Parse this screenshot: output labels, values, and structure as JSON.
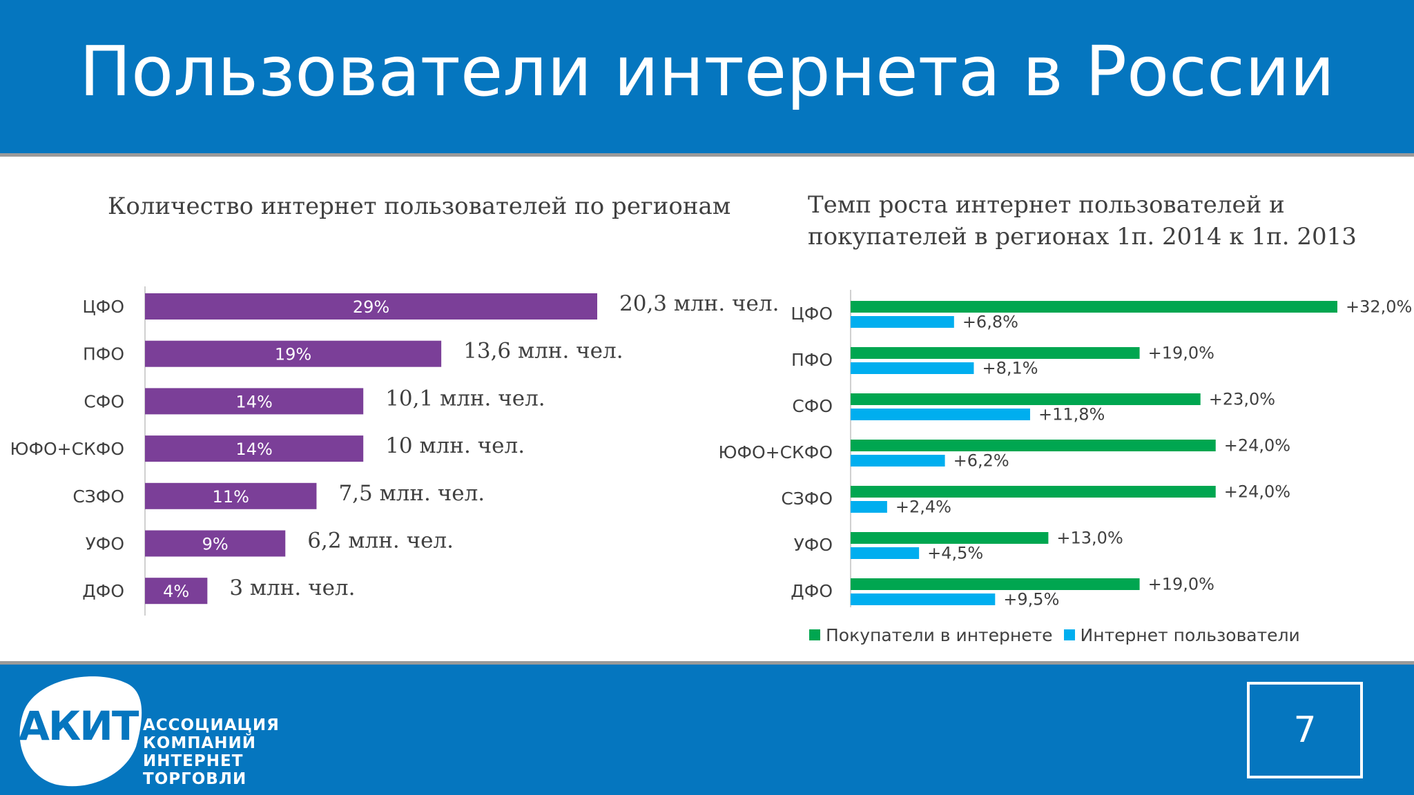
{
  "header": {
    "title": "Пользователи интернета в России"
  },
  "colors": {
    "header_bg": "#0576bf",
    "bar_purple": "#7b3f98",
    "bar_green": "#00a650",
    "bar_blue": "#00aeef"
  },
  "chart_data": [
    {
      "type": "bar",
      "orientation": "horizontal",
      "title": "Количество интернет пользователей по регионам",
      "categories": [
        "ЦФО",
        "ПФО",
        "СФО",
        "ЮФО+СКФО",
        "СЗФО",
        "УФО",
        "ДФО"
      ],
      "values": [
        29,
        19,
        14,
        14,
        11,
        9,
        4
      ],
      "value_labels": [
        "29%",
        "19%",
        "14%",
        "14%",
        "11%",
        "9%",
        "4%"
      ],
      "annotations": [
        "20,3 млн. чел.",
        "13,6 млн. чел.",
        "10,1 млн. чел.",
        "10 млн. чел.",
        "7,5 млн. чел.",
        "6,2 млн. чел.",
        "3 млн. чел."
      ],
      "xlim": [
        0,
        29
      ]
    },
    {
      "type": "bar",
      "orientation": "horizontal",
      "title": "Темп роста интернет пользователей и покупателей в регионах 1п. 2014 к 1п. 2013",
      "categories": [
        "ЦФО",
        "ПФО",
        "СФО",
        "ЮФО+СКФО",
        "СЗФО",
        "УФО",
        "ДФО"
      ],
      "series": [
        {
          "name": "Покупатели в интернете",
          "values": [
            32.0,
            19.0,
            23.0,
            24.0,
            24.0,
            13.0,
            19.0
          ],
          "labels": [
            "+32,0%",
            "+19,0%",
            "+23,0%",
            "+24,0%",
            "+24,0%",
            "+13,0%",
            "+19,0%"
          ]
        },
        {
          "name": "Интернет пользователи",
          "values": [
            6.8,
            8.1,
            11.8,
            6.2,
            2.4,
            4.5,
            9.5
          ],
          "labels": [
            "+6,8%",
            "+8,1%",
            "+11,8%",
            "+6,2%",
            "+2,4%",
            "+4,5%",
            "+9,5%"
          ]
        }
      ],
      "xlim": [
        0,
        32
      ],
      "legend": "bottom"
    }
  ],
  "footer": {
    "logo_text": "АКИТ",
    "org_name_lines": [
      "АССОЦИАЦИЯ",
      "КОМПАНИЙ",
      "ИНТЕРНЕТ",
      "ТОРГОВЛИ"
    ],
    "page_number": "7"
  }
}
